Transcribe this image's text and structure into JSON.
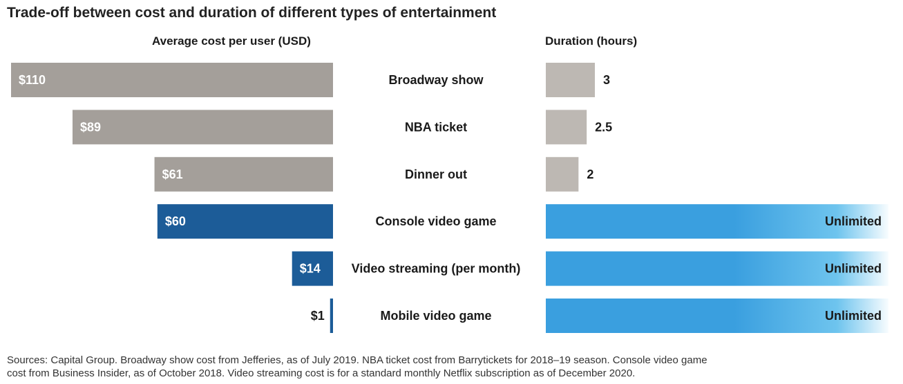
{
  "title": "Trade-off between cost and duration of different types of entertainment",
  "headers": {
    "cost": "Average cost per user (USD)",
    "duration": "Duration (hours)"
  },
  "colors": {
    "cost_gray": "#a49f9a",
    "cost_blue": "#1c5c98",
    "duration_gray": "#bdb8b3",
    "duration_blue": "#3a9fdf",
    "duration_blue_light": "#6ec4ee"
  },
  "chart_data": {
    "type": "bar",
    "categories": [
      "Broadway show",
      "NBA ticket",
      "Dinner out",
      "Console video game",
      "Video streaming (per month)",
      "Mobile video game"
    ],
    "series": [
      {
        "name": "Average cost per user (USD)",
        "values": [
          110,
          89,
          61,
          60,
          14,
          1
        ],
        "labels": [
          "$110",
          "$89",
          "$61",
          "$60",
          "$14",
          "$1"
        ]
      },
      {
        "name": "Duration (hours)",
        "values": [
          3,
          2.5,
          2,
          null,
          null,
          null
        ],
        "labels": [
          "3",
          "2.5",
          "2",
          "Unlimited",
          "Unlimited",
          "Unlimited"
        ]
      }
    ]
  },
  "source": [
    "Sources: Capital Group. Broadway show cost from Jefferies, as of July 2019. NBA ticket cost from Barrytickets for 2018–19 season. Console video game",
    "cost from Business Insider, as of October 2018. Video streaming cost is for a standard monthly Netflix subscription as of December 2020."
  ]
}
